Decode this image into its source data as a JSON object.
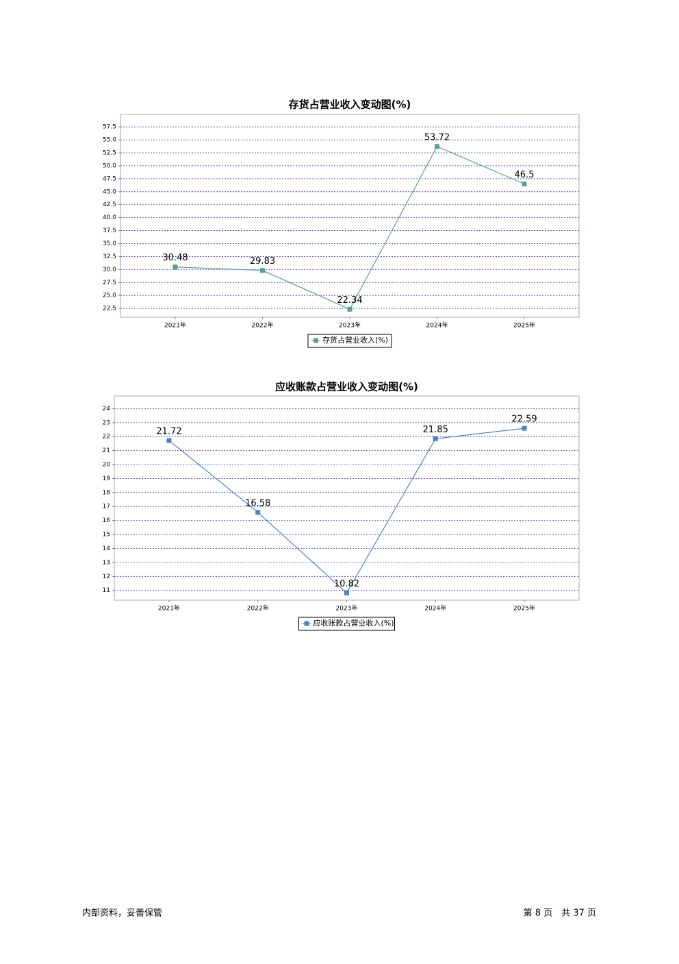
{
  "chart_data": [
    {
      "type": "line",
      "title": "存货占营业收入变动图(%)",
      "categories": [
        "2021年",
        "2022年",
        "2023年",
        "2024年",
        "2025年"
      ],
      "series": [
        {
          "name": "存货占营业收入(%)",
          "color": "#5f9e94",
          "values": [
            30.48,
            29.83,
            22.34,
            53.72,
            46.5
          ]
        }
      ],
      "ylim": [
        20.8,
        59.9
      ],
      "yticks": [
        22.5,
        {
          "value": 25,
          "label": "25.0"
        },
        27.5,
        {
          "value": 30,
          "label": "30.0"
        },
        32.5,
        {
          "value": 35,
          "label": "35.0"
        },
        37.5,
        {
          "value": 40,
          "label": "40.0"
        },
        42.5,
        {
          "value": 45,
          "label": "45.0"
        },
        47.5,
        {
          "value": 50,
          "label": "50.0"
        },
        52.5,
        {
          "value": 55,
          "label": "55.0"
        },
        57.5
      ],
      "grid": true,
      "legend": "bottom"
    },
    {
      "type": "line",
      "title": "应收账款占营业收入变动图(%)",
      "categories": [
        "2021年",
        "2022年",
        "2023年",
        "2024年",
        "2025年"
      ],
      "series": [
        {
          "name": "应收账款占营业收入(%)",
          "color": "#4f81bd",
          "values": [
            21.72,
            16.58,
            10.82,
            21.85,
            22.59
          ]
        }
      ],
      "ylim": [
        10.3,
        24.9
      ],
      "yticks": [
        11,
        12,
        13,
        14,
        15,
        16,
        17,
        18,
        19,
        20,
        21,
        22,
        23,
        24
      ],
      "grid": true,
      "legend": "bottom"
    }
  ],
  "footer": {
    "left": "内部资料，妥善保管",
    "right": "第 8 页　共 37 页"
  }
}
